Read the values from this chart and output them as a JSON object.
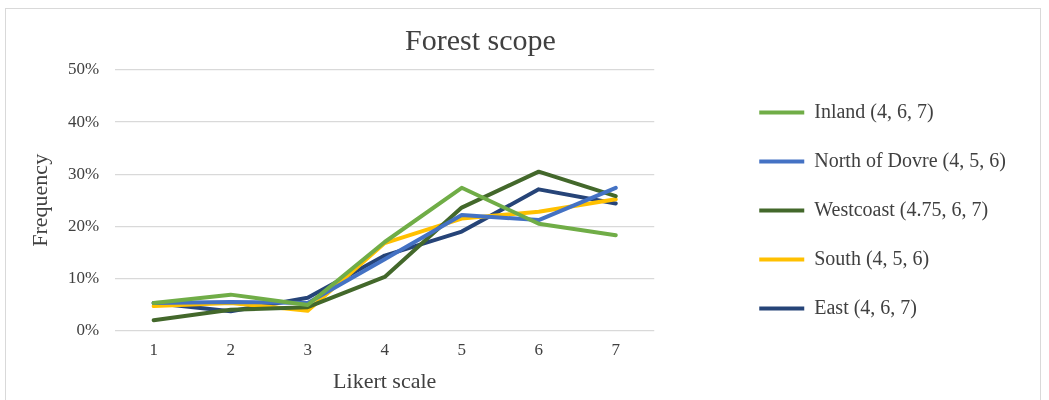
{
  "chart_data": {
    "type": "line",
    "title": "Forest scope",
    "xlabel": "Likert scale",
    "ylabel": "Frequency",
    "categories": [
      "1",
      "2",
      "3",
      "4",
      "5",
      "6",
      "7"
    ],
    "series": [
      {
        "name": "Inland (4, 6, 7)",
        "color": "#70ad47",
        "values": [
          5.3,
          6.9,
          4.9,
          17.0,
          27.4,
          20.5,
          18.3
        ]
      },
      {
        "name": "North of Dovre (4, 5, 6)",
        "color": "#4472c4",
        "values": [
          5.3,
          5.5,
          5.3,
          13.7,
          22.2,
          21.2,
          27.4
        ]
      },
      {
        "name": "Westcoast (4.75, 6, 7)",
        "color": "#43682b",
        "values": [
          2.0,
          4.0,
          4.5,
          10.3,
          23.6,
          30.5,
          25.8
        ]
      },
      {
        "name": "South (4, 5, 6)",
        "color": "#ffc000",
        "values": [
          4.7,
          5.3,
          3.8,
          16.8,
          21.5,
          22.8,
          25.2
        ]
      },
      {
        "name": "East (4, 6, 7)",
        "color": "#264478",
        "values": [
          5.3,
          3.7,
          6.3,
          14.4,
          19.0,
          27.1,
          24.4
        ]
      }
    ],
    "ylim": [
      0,
      50
    ],
    "yticks": [
      {
        "value": 0,
        "label": "0%"
      },
      {
        "value": 10,
        "label": "10%"
      },
      {
        "value": 20,
        "label": "20%"
      },
      {
        "value": 30,
        "label": "30%"
      },
      {
        "value": 40,
        "label": "40%"
      },
      {
        "value": 50,
        "label": "50%"
      }
    ],
    "grid": "y",
    "legend": "right",
    "marker": "none",
    "line_style": "solid"
  }
}
